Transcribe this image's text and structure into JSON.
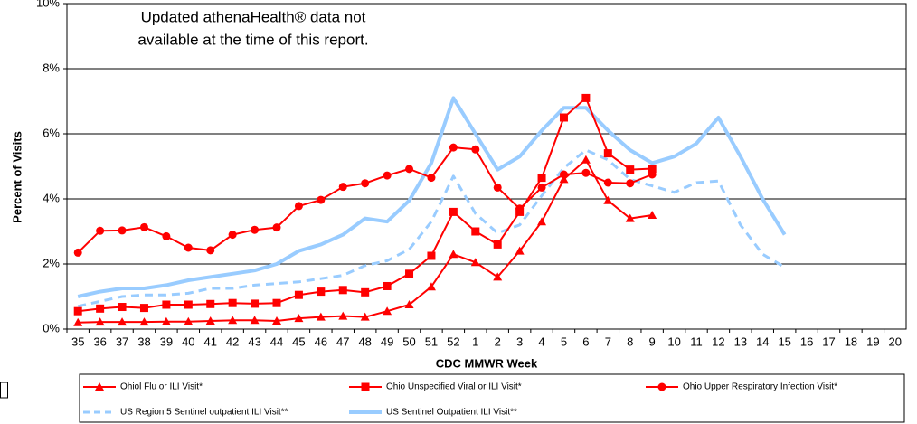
{
  "chart_data": {
    "type": "line",
    "annotation": [
      "Updated athenaHealth® data not",
      "available at the time of this report."
    ],
    "x_label": "CDC MMWR Week",
    "y_label": "Percent of Visits",
    "categories": [
      "35",
      "36",
      "37",
      "38",
      "39",
      "40",
      "41",
      "42",
      "43",
      "44",
      "45",
      "46",
      "47",
      "48",
      "49",
      "50",
      "51",
      "52",
      "1",
      "2",
      "3",
      "4",
      "5",
      "6",
      "7",
      "8",
      "9",
      "10",
      "11",
      "12",
      "13",
      "14",
      "15",
      "16",
      "17",
      "18",
      "19",
      "20"
    ],
    "ylim": [
      0,
      10
    ],
    "yticks": [
      {
        "value": 0,
        "label": "0%"
      },
      {
        "value": 2,
        "label": "2%"
      },
      {
        "value": 4,
        "label": "4%"
      },
      {
        "value": 6,
        "label": "6%"
      },
      {
        "value": 8,
        "label": "8%"
      },
      {
        "value": 10,
        "label": "10%"
      }
    ],
    "grid": true,
    "series": [
      {
        "name": "Ohiol Flu or ILI Visit*",
        "color": "#ff0000",
        "marker": "triangle",
        "dashed": false,
        "values": [
          0.2,
          0.22,
          0.22,
          0.22,
          0.23,
          0.23,
          0.25,
          0.27,
          0.27,
          0.25,
          0.33,
          0.37,
          0.4,
          0.37,
          0.55,
          0.75,
          1.3,
          2.3,
          2.05,
          1.6,
          2.4,
          3.3,
          4.6,
          5.2,
          3.95,
          3.4,
          3.5,
          null,
          null,
          null,
          null,
          null,
          null,
          null,
          null,
          null,
          null,
          null
        ]
      },
      {
        "name": "Ohio Unspecified Viral or ILI Visit*",
        "color": "#ff0000",
        "marker": "square",
        "dashed": false,
        "values": [
          0.55,
          0.63,
          0.68,
          0.65,
          0.75,
          0.75,
          0.77,
          0.8,
          0.78,
          0.8,
          1.05,
          1.15,
          1.2,
          1.13,
          1.32,
          1.7,
          2.25,
          3.6,
          3.0,
          2.6,
          3.6,
          4.65,
          6.5,
          7.1,
          5.4,
          4.9,
          4.93,
          null,
          null,
          null,
          null,
          null,
          null,
          null,
          null,
          null,
          null,
          null
        ]
      },
      {
        "name": "Ohio Upper Respiratory Infection Visit*",
        "color": "#ff0000",
        "marker": "circle",
        "dashed": false,
        "values": [
          2.35,
          3.02,
          3.03,
          3.13,
          2.85,
          2.5,
          2.42,
          2.9,
          3.05,
          3.12,
          3.78,
          3.97,
          4.37,
          4.48,
          4.72,
          4.92,
          4.65,
          5.58,
          5.52,
          4.35,
          3.7,
          4.35,
          4.75,
          4.8,
          4.5,
          4.48,
          4.75,
          null,
          null,
          null,
          null,
          null,
          null,
          null,
          null,
          null,
          null,
          null
        ]
      },
      {
        "name": "US Region 5 Sentinel outpatient ILI Visit**",
        "color": "#99ccff",
        "marker": "none",
        "dashed": true,
        "values": [
          0.7,
          0.85,
          1.0,
          1.05,
          1.05,
          1.1,
          1.25,
          1.25,
          1.35,
          1.4,
          1.45,
          1.55,
          1.65,
          1.95,
          2.1,
          2.45,
          3.3,
          4.7,
          3.55,
          2.95,
          3.2,
          4.1,
          4.95,
          5.5,
          5.2,
          4.6,
          4.4,
          4.2,
          4.5,
          4.55,
          3.2,
          2.3,
          1.9,
          null,
          null,
          null,
          null,
          null
        ]
      },
      {
        "name": "US Sentinel Outpatient ILI Visit**",
        "color": "#99ccff",
        "marker": "none",
        "dashed": false,
        "values": [
          1.0,
          1.15,
          1.25,
          1.25,
          1.35,
          1.5,
          1.6,
          1.7,
          1.8,
          2.0,
          2.4,
          2.6,
          2.9,
          3.4,
          3.3,
          3.95,
          5.1,
          7.1,
          6.0,
          4.9,
          5.3,
          6.1,
          6.8,
          6.8,
          6.1,
          5.5,
          5.1,
          5.3,
          5.7,
          6.5,
          5.3,
          4.0,
          2.9,
          null,
          null,
          null,
          null,
          null
        ]
      }
    ]
  }
}
